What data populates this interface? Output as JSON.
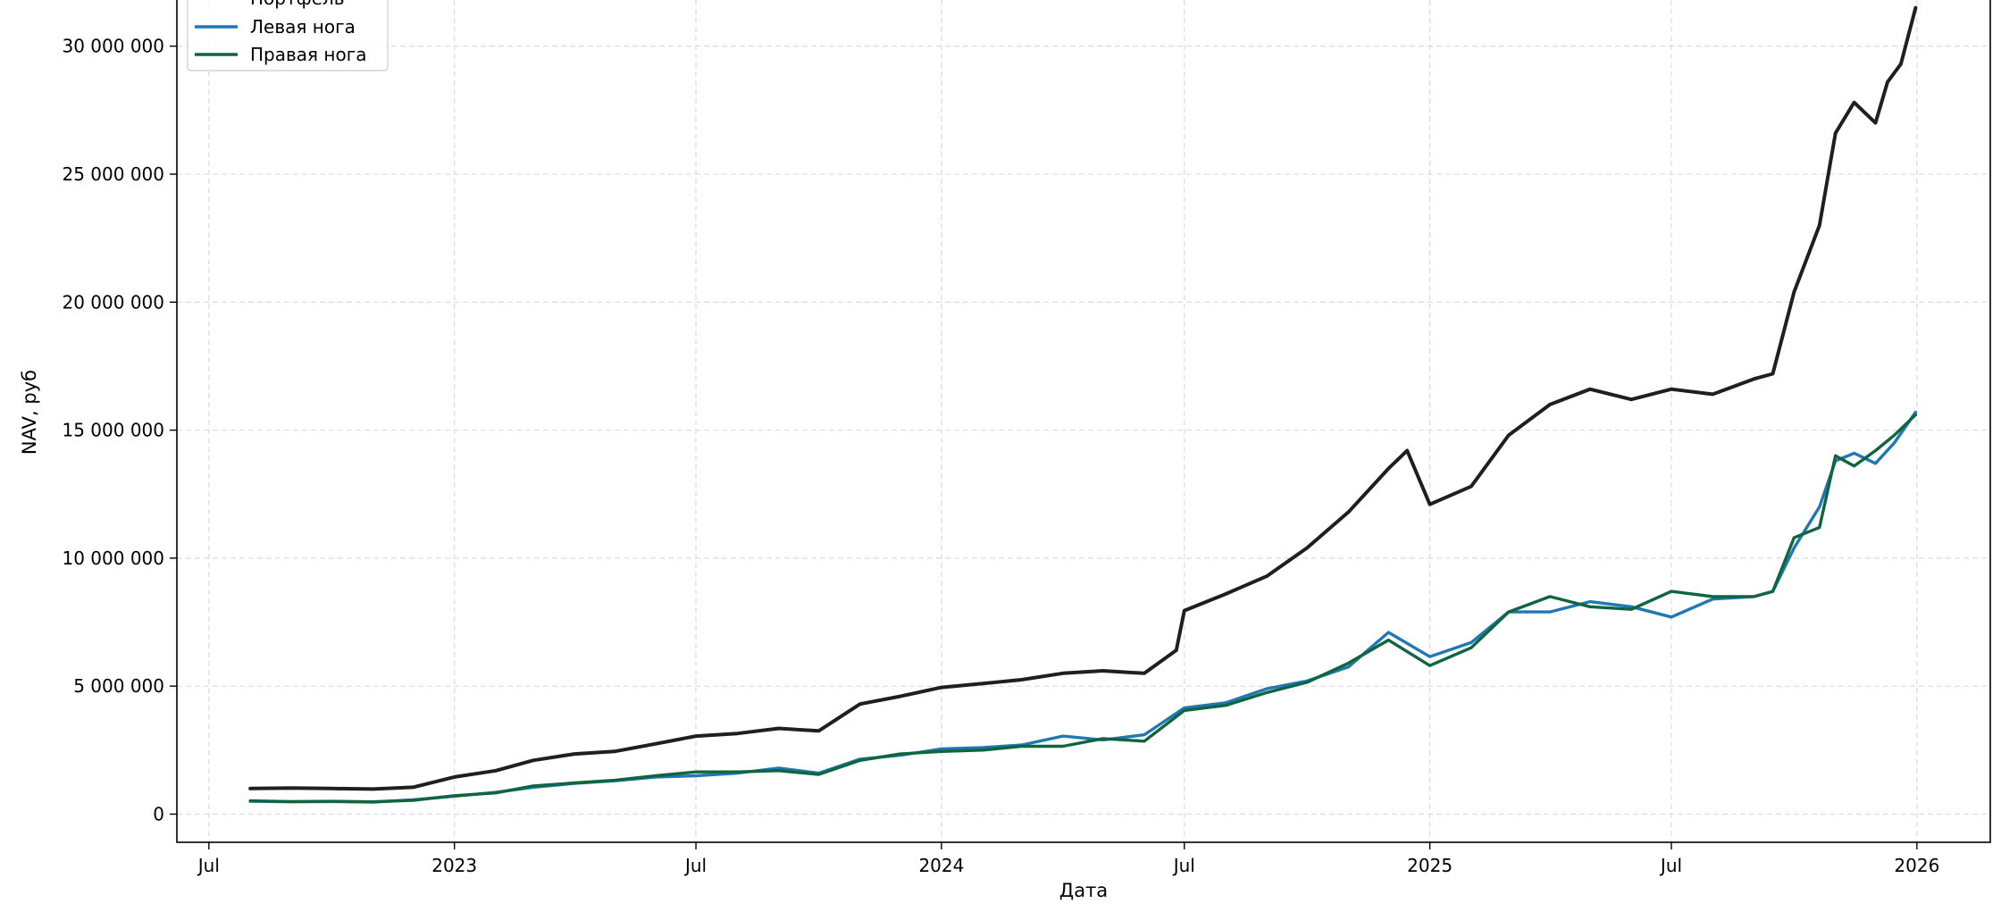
{
  "chart_data": {
    "type": "line",
    "title": "",
    "xlabel": "Дата",
    "ylabel": "NAV, руб",
    "ylim": [
      -1100000,
      32500000
    ],
    "xlim": [
      "2022-06-07",
      "2026-02-25"
    ],
    "grid": true,
    "legend_placement": "upper-left",
    "x_ticks": [
      {
        "date": "2022-07-01",
        "label": "Jul"
      },
      {
        "date": "2023-01-01",
        "label": "2023"
      },
      {
        "date": "2023-07-01",
        "label": "Jul"
      },
      {
        "date": "2024-01-01",
        "label": "2024"
      },
      {
        "date": "2024-07-01",
        "label": "Jul"
      },
      {
        "date": "2025-01-01",
        "label": "2025"
      },
      {
        "date": "2025-07-01",
        "label": "Jul"
      },
      {
        "date": "2026-01-01",
        "label": "2026"
      }
    ],
    "y_ticks": [
      {
        "value": 0,
        "label": "0"
      },
      {
        "value": 5000000,
        "label": "5 000 000"
      },
      {
        "value": 10000000,
        "label": "10 000 000"
      },
      {
        "value": 15000000,
        "label": "15 000 000"
      },
      {
        "value": 20000000,
        "label": "20 000 000"
      },
      {
        "value": 25000000,
        "label": "25 000 000"
      },
      {
        "value": 30000000,
        "label": "30 000 000"
      }
    ],
    "series": [
      {
        "name": "Портфель",
        "color": "#1f1f1f",
        "x": [
          "2022-08-01",
          "2022-09-01",
          "2022-10-01",
          "2022-11-01",
          "2022-12-01",
          "2023-01-01",
          "2023-02-01",
          "2023-03-01",
          "2023-04-01",
          "2023-05-01",
          "2023-06-01",
          "2023-07-01",
          "2023-08-01",
          "2023-09-01",
          "2023-10-01",
          "2023-11-01",
          "2023-12-01",
          "2024-01-01",
          "2024-02-01",
          "2024-03-01",
          "2024-04-01",
          "2024-05-01",
          "2024-06-01",
          "2024-06-25",
          "2024-07-01",
          "2024-08-01",
          "2024-09-01",
          "2024-10-01",
          "2024-11-01",
          "2024-12-01",
          "2024-12-15",
          "2025-01-01",
          "2025-02-01",
          "2025-03-01",
          "2025-04-01",
          "2025-05-01",
          "2025-06-01",
          "2025-07-01",
          "2025-08-01",
          "2025-09-01",
          "2025-09-15",
          "2025-10-01",
          "2025-10-20",
          "2025-11-01",
          "2025-11-15",
          "2025-12-01",
          "2025-12-10",
          "2025-12-20",
          "2025-12-31"
        ],
        "y": [
          1000000,
          1020000,
          1000000,
          980000,
          1050000,
          1450000,
          1700000,
          2100000,
          2350000,
          2450000,
          2750000,
          3050000,
          3150000,
          3350000,
          3250000,
          4300000,
          4600000,
          4950000,
          5100000,
          5250000,
          5500000,
          5600000,
          5500000,
          6400000,
          7950000,
          8600000,
          9300000,
          10400000,
          11800000,
          13500000,
          14200000,
          12100000,
          12800000,
          14800000,
          16000000,
          16600000,
          16200000,
          16600000,
          16400000,
          17000000,
          17200000,
          20400000,
          23000000,
          26600000,
          27800000,
          27000000,
          28600000,
          29300000,
          31500000
        ]
      },
      {
        "name": "Левая нога",
        "color": "#1f77b4",
        "x": [
          "2022-08-01",
          "2022-09-01",
          "2022-10-01",
          "2022-11-01",
          "2022-12-01",
          "2023-01-01",
          "2023-02-01",
          "2023-03-01",
          "2023-04-01",
          "2023-05-01",
          "2023-06-01",
          "2023-07-01",
          "2023-08-01",
          "2023-09-01",
          "2023-10-01",
          "2023-11-01",
          "2023-12-01",
          "2024-01-01",
          "2024-02-01",
          "2024-03-01",
          "2024-04-01",
          "2024-05-01",
          "2024-06-01",
          "2024-07-01",
          "2024-08-01",
          "2024-09-01",
          "2024-10-01",
          "2024-11-01",
          "2024-12-01",
          "2025-01-01",
          "2025-02-01",
          "2025-03-01",
          "2025-04-01",
          "2025-05-01",
          "2025-06-01",
          "2025-07-01",
          "2025-08-01",
          "2025-09-01",
          "2025-09-15",
          "2025-10-01",
          "2025-10-20",
          "2025-11-01",
          "2025-11-15",
          "2025-12-01",
          "2025-12-15",
          "2025-12-31"
        ],
        "y": [
          500000,
          480000,
          490000,
          470000,
          560000,
          700000,
          850000,
          1050000,
          1200000,
          1300000,
          1450000,
          1500000,
          1600000,
          1800000,
          1600000,
          2150000,
          2300000,
          2550000,
          2600000,
          2700000,
          3050000,
          2900000,
          3100000,
          4150000,
          4350000,
          4900000,
          5200000,
          5750000,
          7100000,
          6150000,
          6700000,
          7900000,
          7900000,
          8300000,
          8100000,
          7700000,
          8400000,
          8500000,
          8700000,
          10400000,
          12000000,
          13800000,
          14100000,
          13700000,
          14500000,
          15700000
        ]
      },
      {
        "name": "Правая нога",
        "color": "#10653e",
        "x": [
          "2022-08-01",
          "2022-09-01",
          "2022-10-01",
          "2022-11-01",
          "2022-12-01",
          "2023-01-01",
          "2023-02-01",
          "2023-03-01",
          "2023-04-01",
          "2023-05-01",
          "2023-06-01",
          "2023-07-01",
          "2023-08-01",
          "2023-09-01",
          "2023-10-01",
          "2023-11-01",
          "2023-12-01",
          "2024-01-01",
          "2024-02-01",
          "2024-03-01",
          "2024-04-01",
          "2024-05-01",
          "2024-06-01",
          "2024-07-01",
          "2024-08-01",
          "2024-09-01",
          "2024-10-01",
          "2024-11-01",
          "2024-12-01",
          "2025-01-01",
          "2025-02-01",
          "2025-03-01",
          "2025-04-01",
          "2025-05-01",
          "2025-06-01",
          "2025-07-01",
          "2025-08-01",
          "2025-09-01",
          "2025-09-15",
          "2025-10-01",
          "2025-10-20",
          "2025-11-01",
          "2025-11-15",
          "2025-12-01",
          "2025-12-15",
          "2025-12-31"
        ],
        "y": [
          520000,
          490000,
          500000,
          480000,
          540000,
          720000,
          830000,
          1100000,
          1220000,
          1320000,
          1500000,
          1650000,
          1650000,
          1700000,
          1550000,
          2100000,
          2350000,
          2450000,
          2500000,
          2650000,
          2650000,
          2950000,
          2850000,
          4050000,
          4250000,
          4750000,
          5150000,
          5900000,
          6800000,
          5800000,
          6500000,
          7900000,
          8500000,
          8100000,
          8000000,
          8700000,
          8500000,
          8500000,
          8700000,
          10800000,
          11200000,
          14000000,
          13600000,
          14200000,
          14800000,
          15600000
        ]
      }
    ]
  }
}
